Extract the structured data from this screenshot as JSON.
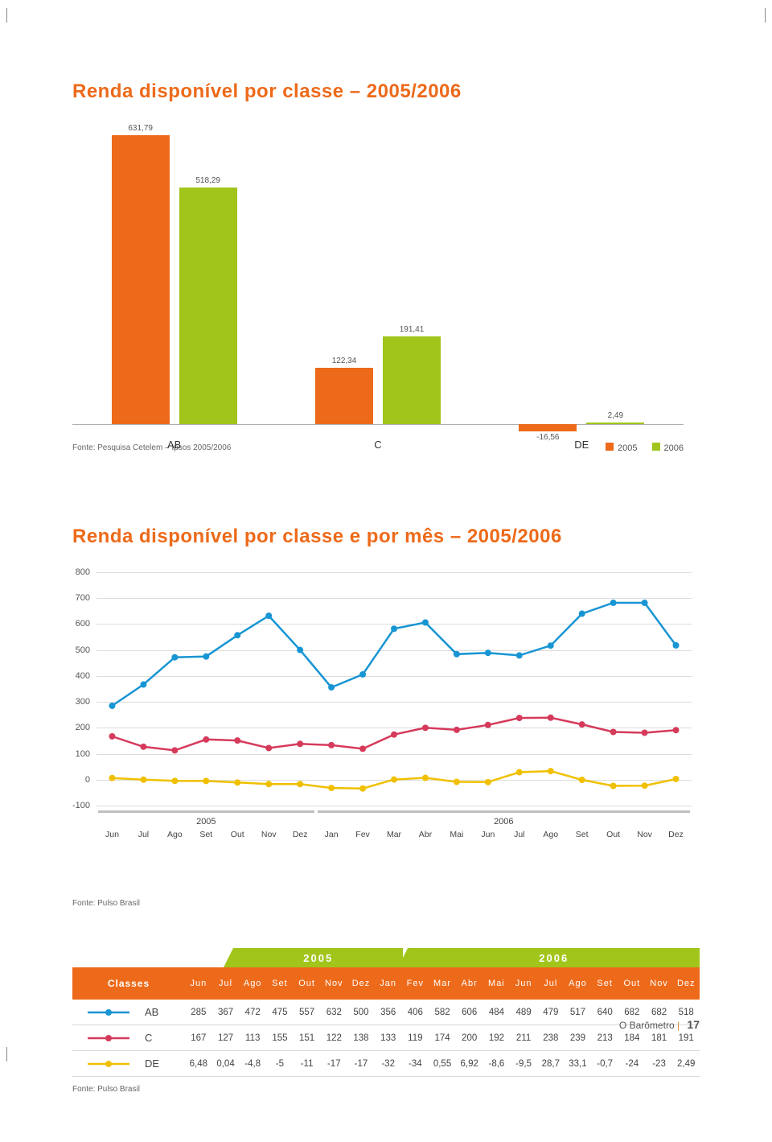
{
  "colors": {
    "orange": "#ed6a1a",
    "green": "#a1c51a",
    "blue": "#1895d3",
    "red_c": "#d63a5b",
    "yellow_de": "#f0c000",
    "title": "#ed6a1a",
    "table_header_bg": "#ed6a1a",
    "grid": "#dcdcdc",
    "grey_bar": "#bfbfbf"
  },
  "barChart": {
    "title": "Renda disponível por classe – 2005/2006",
    "categories": [
      "AB",
      "C",
      "DE"
    ],
    "series": [
      {
        "name": "2005",
        "colorKey": "orange",
        "values": [
          631.79,
          122.34,
          -16.56
        ]
      },
      {
        "name": "2006",
        "colorKey": "green",
        "values": [
          518.29,
          191.41,
          2.49
        ]
      }
    ],
    "value_labels": [
      [
        "631,79",
        "122,34",
        "-16,56"
      ],
      [
        "518,29",
        "191,41",
        "2,49"
      ]
    ],
    "source": "Fonte: Pesquisa Cetelem – Ipsos 2005/2006",
    "legend": [
      "2005",
      "2006"
    ],
    "y_max": 650,
    "y_min": -20,
    "label_fontsize": 10
  },
  "lineChart": {
    "title": "Renda disponível por classe e por mês – 2005/2006",
    "y_ticks": [
      -100,
      0,
      100,
      200,
      300,
      400,
      500,
      600,
      700,
      800
    ],
    "y_min": -100,
    "y_max": 800,
    "months": [
      "Jun",
      "Jul",
      "Ago",
      "Set",
      "Out",
      "Nov",
      "Dez",
      "Jan",
      "Fev",
      "Mar",
      "Abr",
      "Mai",
      "Jun",
      "Jul",
      "Ago",
      "Set",
      "Out",
      "Nov",
      "Dez"
    ],
    "year_splits": [
      {
        "label": "2005",
        "from": 0,
        "to": 6
      },
      {
        "label": "2006",
        "from": 7,
        "to": 18
      }
    ],
    "series": [
      {
        "name": "AB",
        "colorKey": "blue",
        "values": [
          285,
          367,
          472,
          475,
          557,
          632,
          500,
          356,
          406,
          582,
          606,
          484,
          489,
          479,
          517,
          640,
          682,
          682,
          518
        ]
      },
      {
        "name": "C",
        "colorKey": "red_c",
        "values": [
          167,
          127,
          113,
          155,
          151,
          122,
          138,
          133,
          119,
          174,
          200,
          192,
          211,
          238,
          239,
          213,
          184,
          181,
          191
        ]
      },
      {
        "name": "DE",
        "colorKey": "yellow_de",
        "values": [
          6.48,
          0.04,
          -4.8,
          -5,
          -11,
          -17,
          -17,
          -32,
          -34,
          0.55,
          6.92,
          -8.6,
          -9.5,
          28.7,
          33.1,
          -0.7,
          -24,
          -23,
          2.49
        ]
      }
    ],
    "marker_radius": 4,
    "line_width": 2.5,
    "source": "Fonte: Pulso Brasil"
  },
  "table": {
    "year_headers": [
      "2005",
      "2006"
    ],
    "year_spans": [
      7,
      12
    ],
    "classes_label": "Classes",
    "months": [
      "Jun",
      "Jul",
      "Ago",
      "Set",
      "Out",
      "Nov",
      "Dez",
      "Jan",
      "Fev",
      "Mar",
      "Abr",
      "Mai",
      "Jun",
      "Jul",
      "Ago",
      "Set",
      "Out",
      "Nov",
      "Dez"
    ],
    "rows": [
      {
        "name": "AB",
        "colorKey": "blue",
        "values": [
          "285",
          "367",
          "472",
          "475",
          "557",
          "632",
          "500",
          "356",
          "406",
          "582",
          "606",
          "484",
          "489",
          "479",
          "517",
          "640",
          "682",
          "682",
          "518"
        ]
      },
      {
        "name": "C",
        "colorKey": "red_c",
        "values": [
          "167",
          "127",
          "113",
          "155",
          "151",
          "122",
          "138",
          "133",
          "119",
          "174",
          "200",
          "192",
          "211",
          "238",
          "239",
          "213",
          "184",
          "181",
          "191"
        ]
      },
      {
        "name": "DE",
        "colorKey": "yellow_de",
        "values": [
          "6,48",
          "0,04",
          "-4,8",
          "-5",
          "-11",
          "-17",
          "-17",
          "-32",
          "-34",
          "0,55",
          "6,92",
          "-8,6",
          "-9,5",
          "28,7",
          "33,1",
          "-0,7",
          "-24",
          "-23",
          "2,49"
        ]
      }
    ],
    "source": "Fonte: Pulso Brasil"
  },
  "footer": {
    "text": "O Barômetro",
    "page": "17"
  }
}
